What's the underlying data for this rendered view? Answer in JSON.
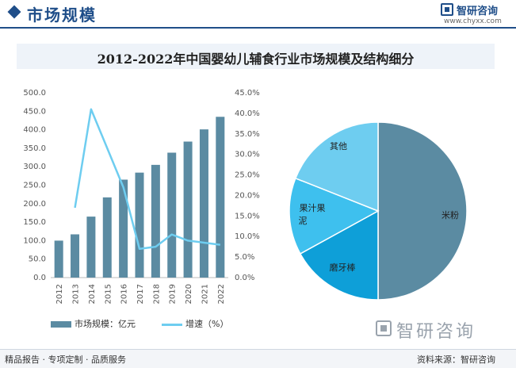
{
  "header": {
    "title": "市场规模"
  },
  "brand": {
    "name": "智研咨询",
    "url": "www.chyxx.com"
  },
  "chart_data": [
    {
      "type": "bar",
      "title": "2012-2022年中国婴幼儿辅食行业市场规模及结构细分",
      "categories": [
        "2012",
        "2013",
        "2014",
        "2015",
        "2016",
        "2017",
        "2018",
        "2019",
        "2020",
        "2021",
        "2022"
      ],
      "series": [
        {
          "name": "市场规模：亿元",
          "type": "bar",
          "axis": "left",
          "values": [
            100,
            117,
            165,
            217,
            265,
            284,
            305,
            338,
            368,
            401,
            435
          ]
        },
        {
          "name": "增速（%）",
          "type": "line",
          "axis": "right",
          "values": [
            null,
            17.0,
            41.0,
            31.5,
            22.0,
            7.0,
            7.5,
            10.5,
            9.0,
            8.5,
            8.0
          ]
        }
      ],
      "ylim": [
        0,
        500
      ],
      "yticks": [
        "0.0",
        "50.0",
        "100.0",
        "150.0",
        "200.0",
        "250.0",
        "300.0",
        "350.0",
        "400.0",
        "450.0",
        "500.0"
      ],
      "y2lim": [
        0,
        45
      ],
      "y2ticks": [
        "0.0%",
        "5.0%",
        "10.0%",
        "15.0%",
        "20.0%",
        "25.0%",
        "30.0%",
        "35.0%",
        "40.0%",
        "45.0%"
      ],
      "legend_position": "bottom"
    },
    {
      "type": "pie",
      "slices": [
        {
          "label": "米粉",
          "value": 50,
          "color": "#5b8ba2"
        },
        {
          "label": "磨牙棒",
          "value": 17,
          "color": "#0e9fd8"
        },
        {
          "label": "果汁果泥",
          "value": 14,
          "color": "#3ec0ee"
        },
        {
          "label": "其他",
          "value": 19,
          "color": "#6ecdf0"
        }
      ]
    }
  ],
  "colors": {
    "bar": "#5b8ba2",
    "line": "#6ecdf0",
    "brand": "#1f4e89"
  },
  "source": "资料来源：智研咨询",
  "footer": {
    "services": "精品报告 · 专项定制 · 品质服务"
  }
}
